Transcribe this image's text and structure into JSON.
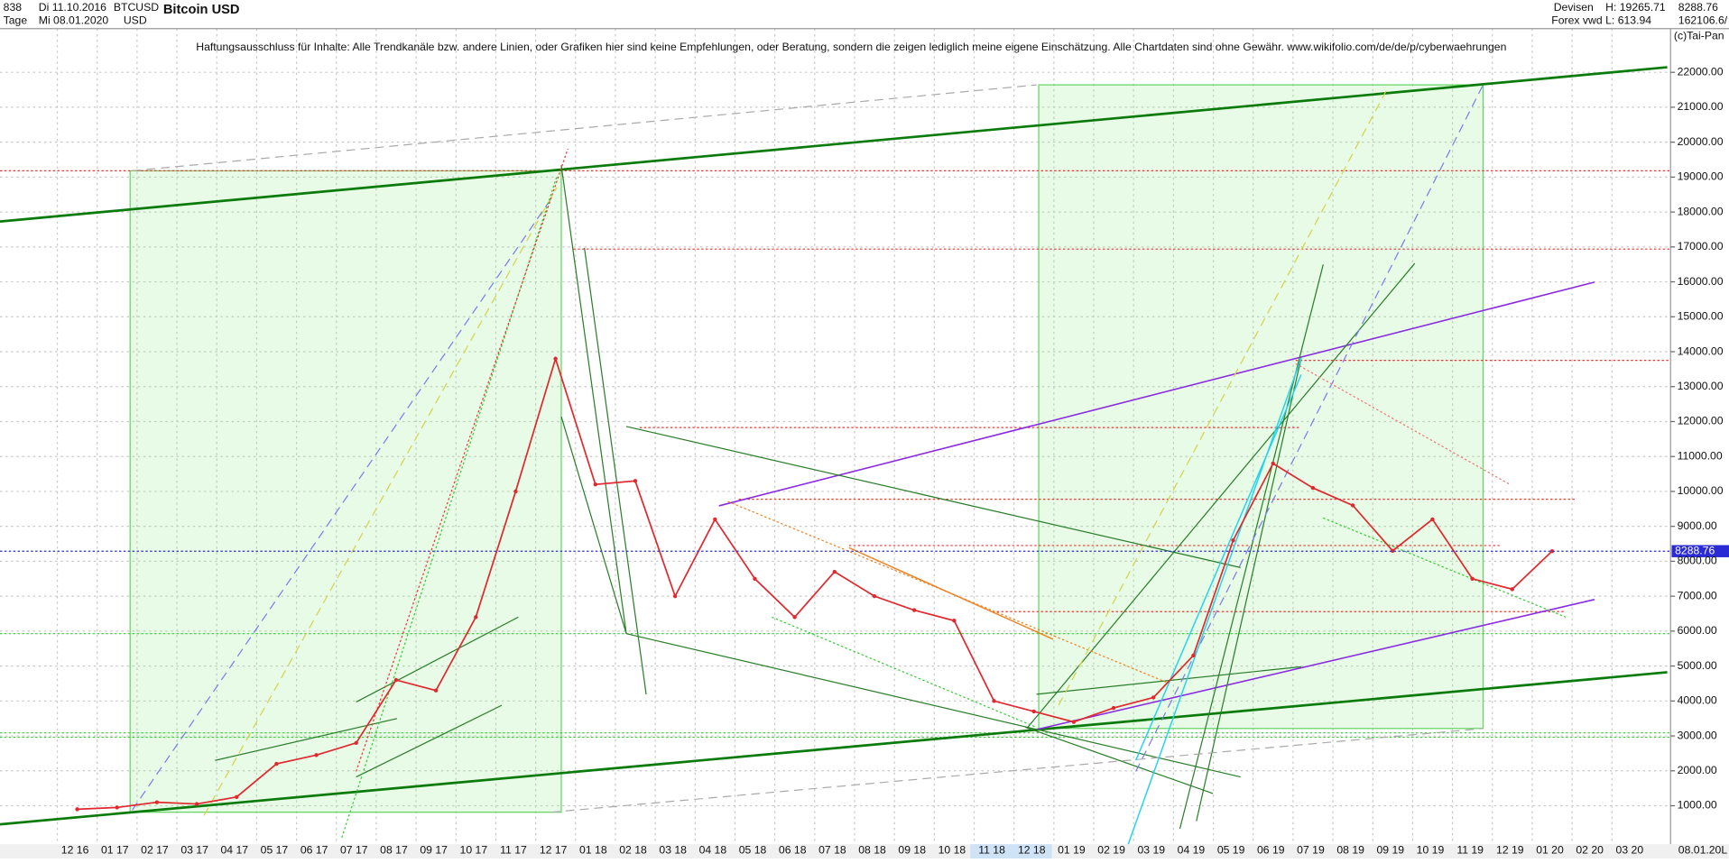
{
  "header": {
    "count": "838",
    "start": "Di 11.10.2016",
    "symbol": "BTCUSD",
    "period": "Tage",
    "end": "Mi 08.01.2020",
    "currency": "USD",
    "market": "Devisen",
    "source": "Forex vwd",
    "high": "H: 19265.71",
    "low": "L: 613.94",
    "volume": "162106.6/",
    "copyright": "(c)Tai-Pan",
    "footer_date": "08.01.20",
    "footer_mark": "L"
  },
  "chart_data": {
    "type": "line",
    "title": "Bitcoin USD",
    "annotation": "Haftungsausschluss für Inhalte: Alle Trendkanäle bzw. andere Linien, oder Grafiken hier sind keine Empfehlungen, oder Beratung, sondern die zeigen lediglich meine eigene Einschätzung. Alle Chartdaten sind ohne Gewähr.  www.wikifolio.com/de/de/p/cyberwaehrungen",
    "categories": [
      "12 16",
      "01 17",
      "02 17",
      "03 17",
      "04 17",
      "05 17",
      "06 17",
      "07 17",
      "08 17",
      "09 17",
      "10 17",
      "11 17",
      "12 17",
      "01 18",
      "02 18",
      "03 18",
      "04 18",
      "05 18",
      "06 18",
      "07 18",
      "08 18",
      "09 18",
      "10 18",
      "11 18",
      "12 18",
      "01 19",
      "02 19",
      "03 19",
      "04 19",
      "05 19",
      "06 19",
      "07 19",
      "08 19",
      "09 19",
      "10 19",
      "11 19",
      "12 19",
      "01 20",
      "02 20",
      "03 20"
    ],
    "series": [
      {
        "name": "BTCUSD",
        "color": "#e0282e",
        "values": [
          900,
          950,
          1100,
          1050,
          1250,
          2200,
          2450,
          2800,
          4600,
          4300,
          6400,
          10000,
          13800,
          10200,
          10300,
          7000,
          9200,
          7500,
          6400,
          7700,
          7000,
          6600,
          6300,
          4000,
          3700,
          3400,
          3800,
          4100,
          5300,
          8600,
          10800,
          10100,
          9600,
          8300,
          9200,
          7500,
          7200,
          8288.76,
          null,
          null
        ]
      }
    ],
    "last_price": 8288.76,
    "last_price_color": "#2b2bd6",
    "ylim": [
      -100,
      23250
    ],
    "yticks": [
      {
        "value": 1000,
        "label": "1000.00"
      },
      {
        "value": 2000,
        "label": "2000.00"
      },
      {
        "value": 3000,
        "label": "3000.00"
      },
      {
        "value": 4000,
        "label": "4000.00"
      },
      {
        "value": 5000,
        "label": "5000.00"
      },
      {
        "value": 6000,
        "label": "6000.00"
      },
      {
        "value": 7000,
        "label": "7000.00"
      },
      {
        "value": 8000,
        "label": "8000.00"
      },
      {
        "value": 9000,
        "label": "9000.00"
      },
      {
        "value": 10000,
        "label": "10000.00"
      },
      {
        "value": 11000,
        "label": "11000.00"
      },
      {
        "value": 12000,
        "label": "12000.00"
      },
      {
        "value": 13000,
        "label": "13000.00"
      },
      {
        "value": 14000,
        "label": "14000.00"
      },
      {
        "value": 15000,
        "label": "15000.00"
      },
      {
        "value": 16000,
        "label": "16000.00"
      },
      {
        "value": 17000,
        "label": "17000.00"
      },
      {
        "value": 18000,
        "label": "18000.00"
      },
      {
        "value": 19000,
        "label": "19000.00"
      },
      {
        "value": 20000,
        "label": "20000.00"
      },
      {
        "value": 21000,
        "label": "21000.00"
      },
      {
        "value": 22000,
        "label": "22000.00"
      }
    ],
    "grid": true
  }
}
